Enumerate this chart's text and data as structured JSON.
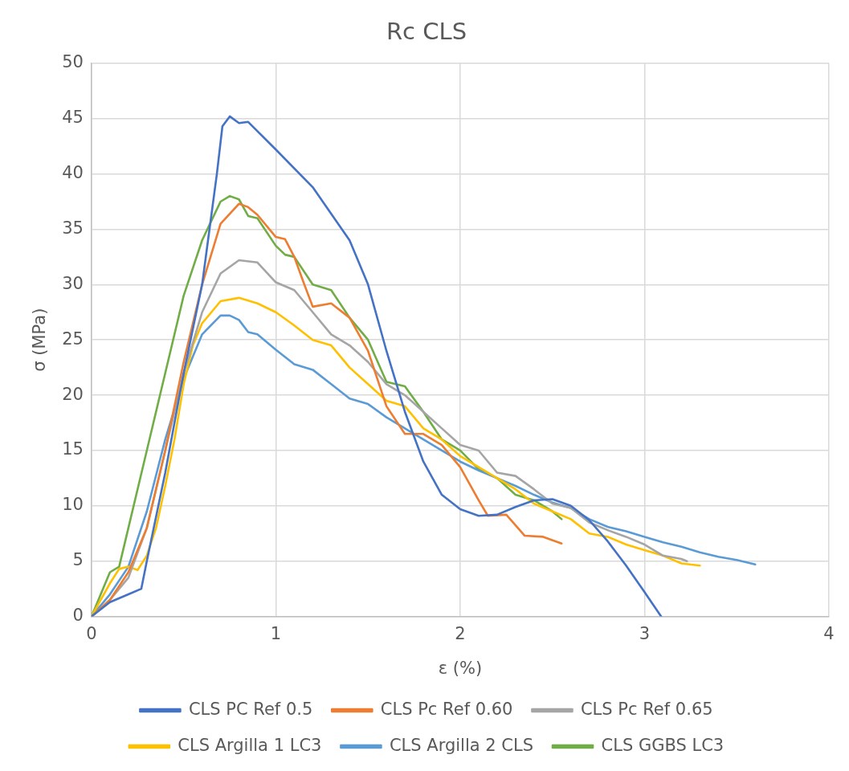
{
  "chart_data": {
    "type": "line",
    "title": "Rc CLS",
    "xlabel": "ε (%)",
    "ylabel": "σ (MPa)",
    "xlim": [
      0,
      4
    ],
    "xticks": [
      0,
      1,
      2,
      3,
      4
    ],
    "ylim": [
      0,
      50
    ],
    "yticks": [
      0,
      5,
      10,
      15,
      20,
      25,
      30,
      35,
      40,
      45,
      50
    ],
    "grid": true,
    "legend": "bottom",
    "marker": "none",
    "line_style": "solid",
    "series": [
      {
        "name": "CLS PC Ref 0.5",
        "color": "#4472c4",
        "x": [
          0,
          0.1,
          0.2,
          0.27,
          0.3,
          0.4,
          0.5,
          0.6,
          0.68,
          0.71,
          0.75,
          0.8,
          0.85,
          1.0,
          1.2,
          1.4,
          1.5,
          1.6,
          1.7,
          1.8,
          1.9,
          2.0,
          2.1,
          2.2,
          2.3,
          2.4,
          2.5,
          2.6,
          2.7,
          2.8,
          2.9,
          3.0,
          3.09
        ],
        "values": [
          0,
          1.3,
          2,
          2.5,
          5,
          13,
          22,
          30,
          40,
          44.3,
          45.2,
          44.6,
          44.7,
          42.2,
          38.8,
          34,
          30,
          24,
          18.5,
          14,
          11,
          9.7,
          9.1,
          9.2,
          9.9,
          10.5,
          10.6,
          10,
          8.7,
          6.8,
          4.6,
          2.2,
          0
        ]
      },
      {
        "name": "CLS Pc Ref 0.60",
        "color": "#ed7d31",
        "x": [
          0,
          0.1,
          0.2,
          0.3,
          0.4,
          0.5,
          0.6,
          0.7,
          0.8,
          0.85,
          0.9,
          1.0,
          1.05,
          1.1,
          1.15,
          1.2,
          1.3,
          1.4,
          1.5,
          1.6,
          1.7,
          1.8,
          1.9,
          2.0,
          2.1,
          2.15,
          2.25,
          2.35,
          2.45,
          2.55
        ],
        "values": [
          0,
          1.5,
          4,
          8,
          15,
          23,
          30,
          35.5,
          37.3,
          37,
          36.3,
          34.3,
          34.1,
          32.5,
          30.2,
          28,
          28.3,
          27,
          24,
          19,
          16.5,
          16.5,
          15.5,
          13.5,
          10.5,
          9.1,
          9.2,
          7.3,
          7.2,
          6.6
        ]
      },
      {
        "name": "CLS Pc Ref 0.65",
        "color": "#a5a5a5",
        "x": [
          0,
          0.1,
          0.2,
          0.3,
          0.4,
          0.5,
          0.6,
          0.7,
          0.8,
          0.9,
          1.0,
          1.1,
          1.2,
          1.3,
          1.4,
          1.5,
          1.6,
          1.7,
          1.8,
          1.9,
          2.0,
          2.1,
          2.2,
          2.3,
          2.4,
          2.5,
          2.6,
          2.7,
          2.8,
          2.9,
          3.0,
          3.1,
          3.2,
          3.23
        ],
        "values": [
          0,
          1.5,
          3.5,
          8,
          15,
          22,
          27.5,
          31,
          32.2,
          32,
          30.2,
          29.5,
          27.5,
          25.5,
          24.5,
          23,
          21,
          20,
          18.5,
          17,
          15.5,
          15,
          13,
          12.7,
          11.5,
          10.2,
          9.8,
          8.5,
          7.8,
          7.2,
          6.5,
          5.5,
          5.2,
          5
        ]
      },
      {
        "name": "CLS Argilla 1 LC3",
        "color": "#ffc000",
        "x": [
          0,
          0.1,
          0.15,
          0.2,
          0.25,
          0.3,
          0.35,
          0.4,
          0.45,
          0.5,
          0.55,
          0.6,
          0.7,
          0.8,
          0.9,
          1.0,
          1.1,
          1.2,
          1.3,
          1.4,
          1.5,
          1.6,
          1.7,
          1.8,
          1.9,
          2.0,
          2.1,
          2.2,
          2.3,
          2.4,
          2.5,
          2.6,
          2.7,
          2.8,
          2.9,
          3.0,
          3.1,
          3.2,
          3.3
        ],
        "values": [
          0,
          3,
          4.3,
          4.5,
          4.2,
          5.5,
          8,
          11.8,
          16,
          21,
          24.5,
          26.5,
          28.5,
          28.8,
          28.3,
          27.5,
          26.3,
          25,
          24.5,
          22.5,
          21,
          19.5,
          19,
          17,
          16,
          14.5,
          13.5,
          12.5,
          11.5,
          10.2,
          9.5,
          8.8,
          7.5,
          7.2,
          6.5,
          6,
          5.5,
          4.8,
          4.6
        ]
      },
      {
        "name": "CLS Argilla 2 CLS",
        "color": "#5b9bd5",
        "x": [
          0,
          0.1,
          0.2,
          0.3,
          0.4,
          0.5,
          0.6,
          0.7,
          0.75,
          0.8,
          0.85,
          0.9,
          1.0,
          1.1,
          1.2,
          1.3,
          1.4,
          1.5,
          1.6,
          1.7,
          1.8,
          1.9,
          2.0,
          2.1,
          2.2,
          2.3,
          2.4,
          2.5,
          2.6,
          2.7,
          2.8,
          2.9,
          3.0,
          3.1,
          3.2,
          3.3,
          3.4,
          3.5,
          3.6
        ],
        "values": [
          0,
          2,
          4.5,
          9.5,
          16,
          21.5,
          25.5,
          27.2,
          27.2,
          26.8,
          25.7,
          25.5,
          24.1,
          22.8,
          22.3,
          21,
          19.7,
          19.2,
          18,
          17,
          16,
          15,
          14,
          13.2,
          12.5,
          11.8,
          11,
          10.3,
          9.8,
          8.8,
          8.1,
          7.7,
          7.2,
          6.7,
          6.3,
          5.8,
          5.4,
          5.1,
          4.7
        ]
      },
      {
        "name": "CLS GGBS LC3",
        "color": "#70ad47",
        "x": [
          0,
          0.05,
          0.1,
          0.15,
          0.2,
          0.3,
          0.4,
          0.5,
          0.6,
          0.7,
          0.75,
          0.8,
          0.85,
          0.9,
          1.0,
          1.05,
          1.1,
          1.2,
          1.3,
          1.4,
          1.5,
          1.6,
          1.7,
          1.8,
          1.9,
          2.0,
          2.1,
          2.2,
          2.3,
          2.4,
          2.5,
          2.55
        ],
        "values": [
          0,
          2,
          4,
          4.5,
          8,
          15,
          22,
          29,
          34,
          37.5,
          38,
          37.7,
          36.2,
          36,
          33.5,
          32.7,
          32.5,
          30,
          29.5,
          27,
          25,
          21.2,
          20.8,
          18.5,
          16,
          15,
          13.3,
          12.5,
          11,
          10.5,
          9.5,
          8.8
        ]
      }
    ]
  }
}
